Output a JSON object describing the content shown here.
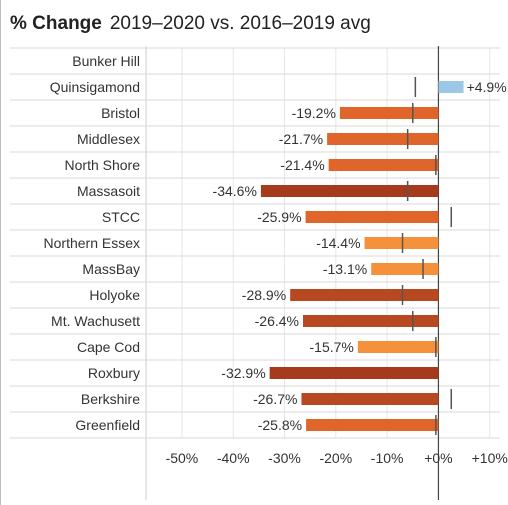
{
  "header": {
    "title_bold": "% Change",
    "title_rest": "2019–2020 vs. 2016–2019 avg"
  },
  "colors": {
    "positive": "#9cc8e8",
    "light": "#f4913a",
    "medium": "#e0652a",
    "dark": "#b8481f",
    "darkest": "#a63a1c",
    "marker": "#555555",
    "grid": "#e6e6e6",
    "row_line": "#d9d9d9",
    "zero_line": "#444444"
  },
  "chart_data": {
    "type": "bar",
    "orientation": "horizontal",
    "title": "% Change",
    "subtitle": "2019–2020 vs. 2016–2019 avg",
    "categories": [
      "Bunker Hill",
      "Quinsigamond",
      "Bristol",
      "Middlesex",
      "North Shore",
      "Massasoit",
      "STCC",
      "Northern Essex",
      "MassBay",
      "Holyoke",
      "Mt. Wachusett",
      "Cape Cod",
      "Roxbury",
      "Berkshire",
      "Greenfield"
    ],
    "values": [
      null,
      4.9,
      -19.2,
      -21.7,
      -21.4,
      -34.6,
      -25.9,
      -14.4,
      -13.1,
      -28.9,
      -26.4,
      -15.7,
      -32.9,
      -26.7,
      -25.8
    ],
    "value_labels": [
      "",
      "+4.9%",
      "-19.2%",
      "-21.7%",
      "-21.4%",
      "-34.6%",
      "-25.9%",
      "-14.4%",
      "-13.1%",
      "-28.9%",
      "-26.4%",
      "-15.7%",
      "-32.9%",
      "-26.7%",
      "-25.8%"
    ],
    "reference_markers": [
      null,
      -4.5,
      -5,
      -6,
      -0.5,
      -6,
      2.5,
      -7,
      -3,
      -7,
      -5,
      -0.5,
      null,
      2.5,
      -0.5
    ],
    "xlim": [
      -57,
      12
    ],
    "xticks": [
      -50,
      -40,
      -30,
      -20,
      -10,
      0,
      10
    ],
    "xtick_labels": [
      "-50%",
      "-40%",
      "-30%",
      "-20%",
      "-10%",
      "+0%",
      "+10%"
    ],
    "grid": true,
    "legend": "none"
  }
}
